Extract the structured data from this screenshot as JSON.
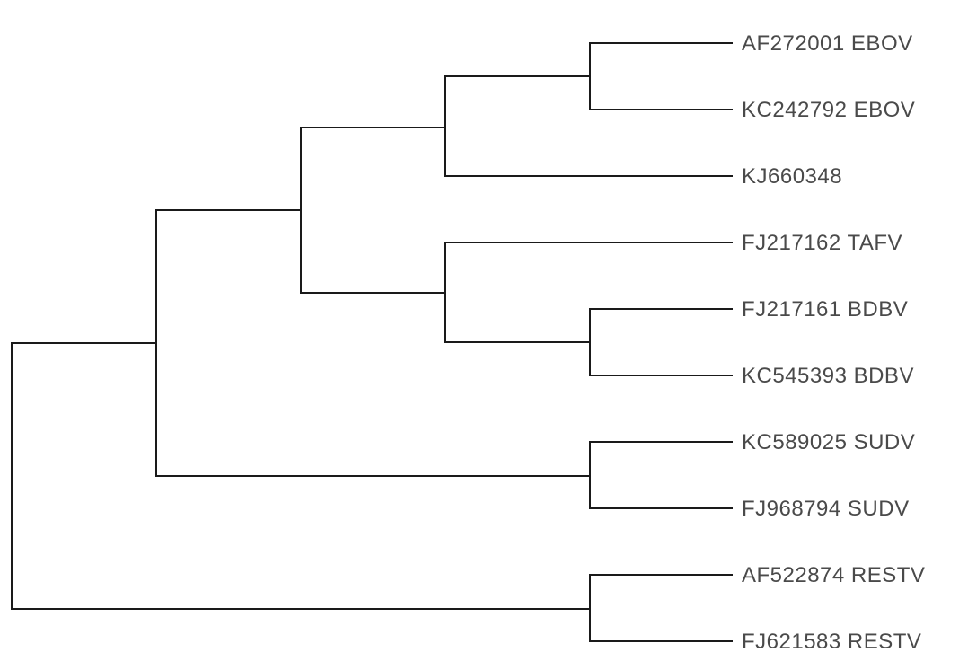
{
  "figure": {
    "type": "phylogenetic-tree",
    "orientation": "left-to-right",
    "taxa": [
      "AF272001 EBOV",
      "KC242792 EBOV",
      "KJ660348",
      "FJ217162 TAFV",
      "FJ217161 BDBV",
      "KC545393 BDBV",
      "KC589025 SUDV",
      "FJ968794 SUDV",
      "AF522874 RESTV",
      "FJ621583 RESTV"
    ],
    "topology": "((((((AF272001 EBOV,KC242792 EBOV),KJ660348),(FJ217162 TAFV,(FJ217161 BDBV,KC545393 BDBV))),(KC589025 SUDV,FJ968794 SUDV)),(AF522874 RESTV,FJ621583 RESTV));"
  },
  "colors": {
    "branch": "#1a1a1a",
    "label": "#4a4a4a",
    "background": "#ffffff"
  }
}
